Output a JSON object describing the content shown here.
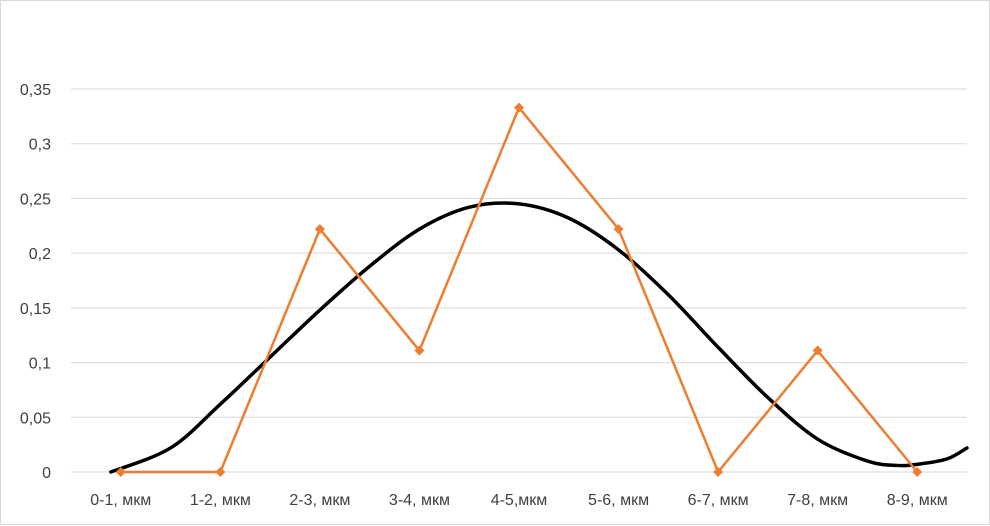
{
  "chart_data": {
    "type": "line",
    "title": "",
    "xlabel": "",
    "ylabel": "",
    "categories": [
      "0-1, мкм",
      "1-2, мкм",
      "2-3, мкм",
      "3-4, мкм",
      "4-5,мкм",
      "5-6, мкм",
      "6-7, мкм",
      "7-8, мкм",
      "8-9, мкм"
    ],
    "y_ticks": [
      "0",
      "0,05",
      "0,1",
      "0,15",
      "0,2",
      "0,25",
      "0,3",
      "0,35"
    ],
    "ylim": [
      0,
      0.35
    ],
    "grid": true,
    "legend": "none",
    "series": [
      {
        "color": "#ed7d31",
        "marker": "diamond",
        "values": [
          0,
          0,
          0.222,
          0.111,
          0.333,
          0.222,
          0,
          0.111,
          0
        ]
      },
      {
        "color": "#000000",
        "marker": "none",
        "smooth": true,
        "x": [
          0.4,
          1,
          1.5,
          2,
          2.5,
          3,
          3.5,
          4,
          4.5,
          5,
          5.5,
          6,
          6.5,
          7,
          7.5,
          8,
          8.3,
          8.5,
          8.8,
          9
        ],
        "values": [
          0,
          0.022,
          0.062,
          0.105,
          0.148,
          0.188,
          0.222,
          0.242,
          0.245,
          0.232,
          0.203,
          0.162,
          0.114,
          0.068,
          0.03,
          0.01,
          0.006,
          0.007,
          0.012,
          0.022
        ]
      }
    ]
  }
}
